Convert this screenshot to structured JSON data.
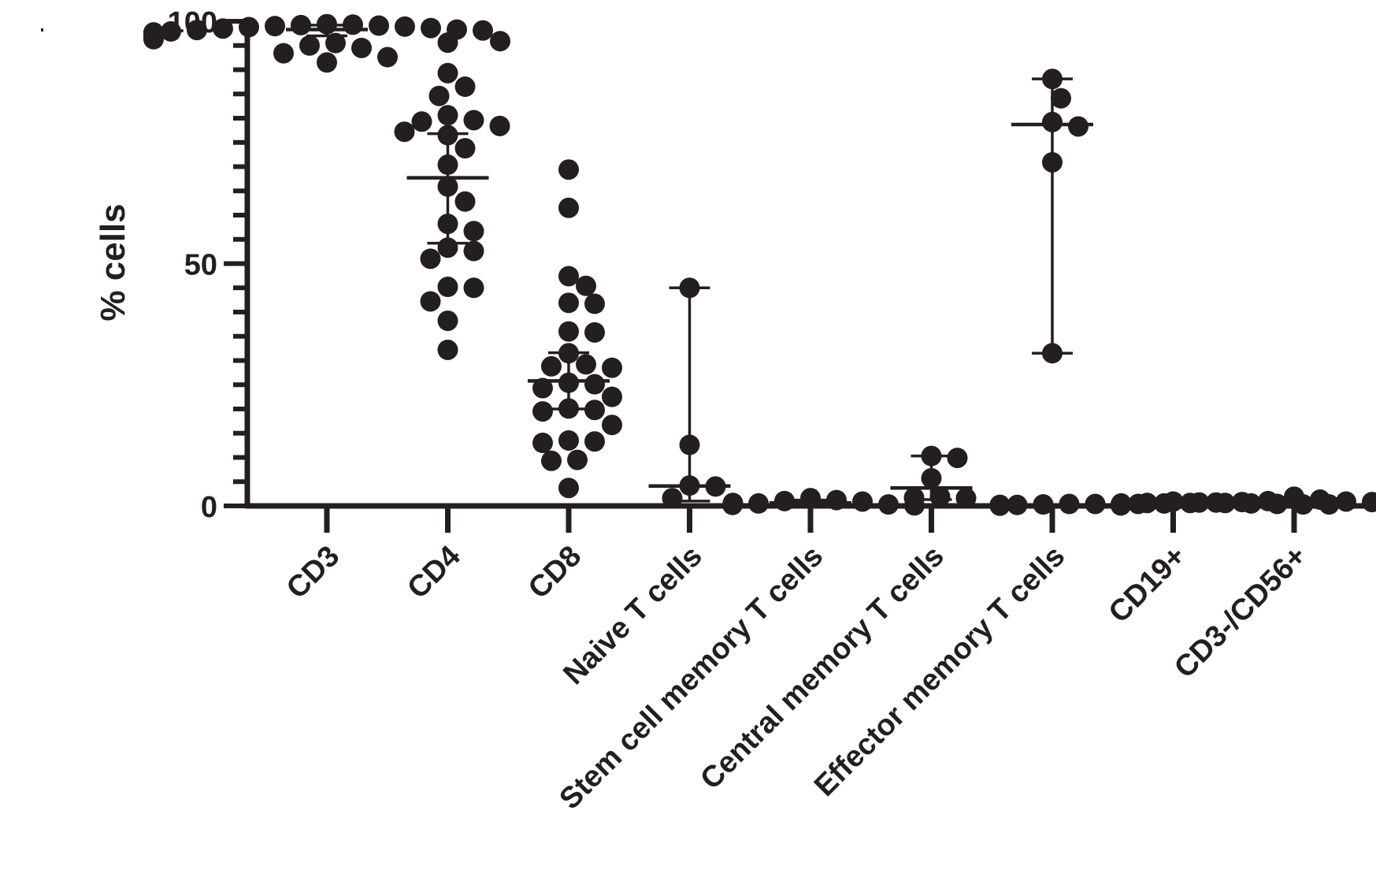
{
  "colors": {
    "ink": "#231f20",
    "background": "#ffffff"
  },
  "chart_data": {
    "type": "scatter",
    "title": "",
    "xlabel": "",
    "ylabel": "% cells",
    "ylim": [
      0,
      100
    ],
    "yticks": [
      0,
      50,
      100
    ],
    "y_minor_step": 5,
    "grid": false,
    "legend": "none",
    "categories": [
      "CD3",
      "CD4",
      "CD8",
      "Naive T cells",
      "Stem cell memory T cells",
      "Central memory T cells",
      "Effector memory T cells",
      "CD19+",
      "CD3-/CD56+"
    ],
    "groups": [
      {
        "category": "CD3",
        "values": [
          99.4,
          99.2,
          99.0,
          98.8,
          98.9,
          99.1,
          99.3,
          98.5,
          98.3,
          98.1,
          97.9,
          97.6,
          97.4,
          97.2,
          97.0,
          96.8,
          96.6,
          96.3,
          95.9,
          95.5,
          95.0,
          94.5,
          93.4,
          92.6,
          91.5,
          98.6,
          98.2,
          97.7
        ],
        "median": 98.3,
        "error": [
          97.0,
          99.2
        ]
      },
      {
        "category": "CD4",
        "values": [
          95.6,
          89.3,
          86.5,
          84.6,
          80.6,
          79.6,
          79.3,
          78.4,
          77.2,
          76.5,
          73.8,
          70.4,
          65.9,
          62.8,
          58.2,
          56.7,
          53.3,
          52.6,
          51.0,
          45.2,
          45.0,
          42.2,
          38.2,
          32.2
        ],
        "median": 67.7,
        "error": [
          54.2,
          76.8
        ]
      },
      {
        "category": "CD8",
        "values": [
          69.4,
          61.5,
          47.4,
          45.4,
          41.9,
          41.7,
          36.0,
          35.8,
          31.5,
          29.2,
          28.8,
          28.5,
          25.4,
          25.1,
          24.3,
          22.5,
          20.1,
          19.8,
          19.5,
          16.7,
          13.5,
          13.3,
          13.0,
          9.5,
          9.3,
          3.7
        ],
        "median": 25.8,
        "error": [
          20.0,
          31.6
        ]
      },
      {
        "category": "Naive T cells",
        "values": [
          45.0,
          12.6,
          4.2,
          4.0,
          1.6,
          0.6
        ],
        "median": 4.1,
        "error": [
          1.0,
          45.0
        ]
      },
      {
        "category": "Stem cell memory T cells",
        "values": [
          1.6,
          1.2,
          1.0,
          0.9,
          0.5,
          0.3,
          0.2,
          0.1
        ],
        "median": 0.6,
        "error": [
          0.2,
          1.2
        ]
      },
      {
        "category": "Central memory T cells",
        "values": [
          10.3,
          9.9,
          5.7,
          1.9,
          1.7,
          1.6
        ],
        "median": 3.7,
        "error": [
          1.3,
          10.3
        ]
      },
      {
        "category": "Effector memory T cells",
        "values": [
          88.1,
          84.1,
          79.2,
          78.3,
          70.9,
          31.5
        ],
        "median": 78.7,
        "error": [
          31.5,
          88.1
        ]
      },
      {
        "category": "CD19+",
        "values": [
          0.9,
          0.7,
          0.6,
          0.5,
          0.5,
          0.4,
          0.4,
          0.3,
          0.3,
          0.2,
          0.2,
          0.1,
          0.1,
          0.1,
          0.05,
          0.6,
          0.4,
          0.3,
          0.2,
          0.1
        ],
        "median": 0.3,
        "error": [
          0.1,
          0.5
        ]
      },
      {
        "category": "CD3-/CD56+",
        "values": [
          1.9,
          1.3,
          1.0,
          0.9,
          0.8,
          0.7,
          0.6,
          0.5,
          0.5,
          0.4,
          0.3,
          0.3,
          0.2,
          0.2,
          0.1,
          0.1,
          0.8,
          0.6,
          0.4,
          0.2
        ],
        "median": 0.5,
        "error": [
          0.2,
          0.9
        ]
      }
    ]
  }
}
